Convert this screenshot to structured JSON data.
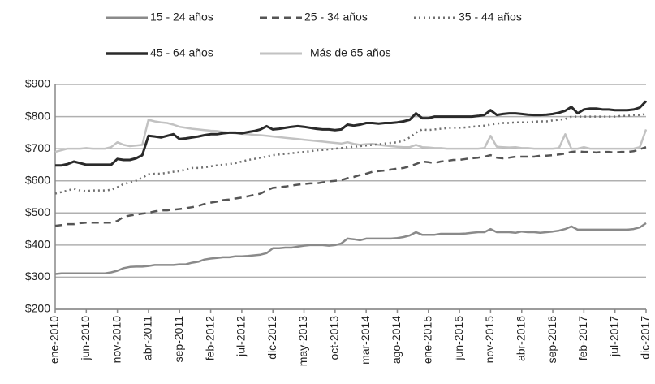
{
  "chart_data": {
    "type": "line",
    "categories": [
      "ene-2010",
      null,
      null,
      null,
      null,
      "jun-2010",
      null,
      null,
      null,
      null,
      "nov-2010",
      null,
      null,
      null,
      null,
      "abr-2011",
      null,
      null,
      null,
      null,
      "sep-2011",
      null,
      null,
      null,
      null,
      "feb-2012",
      null,
      null,
      null,
      null,
      "jul-2012",
      null,
      null,
      null,
      null,
      "dic-2012",
      null,
      null,
      null,
      null,
      "may-2013",
      null,
      null,
      null,
      null,
      "oct-2013",
      null,
      null,
      null,
      null,
      "mar-2014",
      null,
      null,
      null,
      null,
      "ago-2014",
      null,
      null,
      null,
      null,
      "ene-2015",
      null,
      null,
      null,
      null,
      "jun-2015",
      null,
      null,
      null,
      null,
      "nov-2015",
      null,
      null,
      null,
      null,
      "abr-2016",
      null,
      null,
      null,
      null,
      "sep-2016",
      null,
      null,
      null,
      null,
      "feb-2017",
      null,
      null,
      null,
      null,
      "jul-2017",
      null,
      null,
      null,
      null,
      "dic-2017"
    ],
    "series": [
      {
        "name": "15 - 24 años",
        "color": "#8a8a8a",
        "dash": "solid",
        "values": [
          310,
          312,
          312,
          312,
          312,
          312,
          312,
          312,
          312,
          315,
          320,
          328,
          332,
          333,
          333,
          335,
          338,
          338,
          338,
          338,
          340,
          340,
          345,
          348,
          355,
          358,
          360,
          362,
          362,
          365,
          365,
          366,
          368,
          370,
          375,
          390,
          390,
          392,
          392,
          395,
          398,
          400,
          400,
          400,
          398,
          400,
          405,
          420,
          418,
          415,
          420,
          420,
          420,
          420,
          420,
          422,
          425,
          430,
          440,
          432,
          432,
          432,
          435,
          435,
          435,
          435,
          436,
          438,
          440,
          440,
          450,
          440,
          440,
          440,
          438,
          442,
          440,
          440,
          438,
          440,
          442,
          445,
          450,
          458,
          448,
          448,
          448,
          448,
          448,
          448,
          448,
          448,
          448,
          450,
          455,
          468
        ]
      },
      {
        "name": "25 - 34 años",
        "color": "#555555",
        "dash": "dashed",
        "values": [
          460,
          462,
          465,
          465,
          468,
          470,
          470,
          470,
          470,
          470,
          475,
          488,
          492,
          495,
          498,
          500,
          505,
          508,
          508,
          510,
          512,
          515,
          518,
          522,
          528,
          532,
          535,
          540,
          542,
          545,
          548,
          552,
          556,
          560,
          570,
          578,
          580,
          582,
          585,
          588,
          590,
          592,
          592,
          595,
          598,
          600,
          602,
          608,
          612,
          618,
          622,
          628,
          630,
          632,
          635,
          638,
          640,
          645,
          652,
          660,
          658,
          655,
          660,
          662,
          665,
          665,
          668,
          670,
          672,
          675,
          680,
          672,
          670,
          672,
          675,
          675,
          675,
          675,
          678,
          678,
          680,
          682,
          685,
          690,
          692,
          690,
          690,
          688,
          690,
          690,
          688,
          690,
          690,
          692,
          698,
          705
        ]
      },
      {
        "name": "35 - 44 años",
        "color": "#707070",
        "dash": "dotted",
        "values": [
          560,
          565,
          570,
          575,
          570,
          568,
          570,
          570,
          570,
          572,
          580,
          590,
          595,
          600,
          610,
          620,
          622,
          622,
          625,
          628,
          630,
          635,
          640,
          640,
          642,
          645,
          648,
          650,
          652,
          655,
          660,
          665,
          668,
          672,
          675,
          680,
          682,
          684,
          686,
          688,
          690,
          692,
          695,
          696,
          698,
          700,
          702,
          705,
          706,
          708,
          710,
          712,
          714,
          716,
          718,
          720,
          725,
          735,
          750,
          760,
          758,
          760,
          762,
          764,
          765,
          765,
          766,
          768,
          770,
          772,
          775,
          778,
          780,
          780,
          782,
          782,
          782,
          784,
          785,
          785,
          788,
          790,
          792,
          800,
          800,
          800,
          800,
          800,
          800,
          800,
          800,
          802,
          802,
          805,
          805,
          808
        ]
      },
      {
        "name": "45 - 64 años",
        "color": "#2a2a2a",
        "dash": "solid",
        "values": [
          648,
          648,
          652,
          660,
          655,
          650,
          650,
          650,
          650,
          650,
          668,
          665,
          665,
          670,
          680,
          740,
          738,
          735,
          740,
          745,
          730,
          732,
          735,
          738,
          742,
          745,
          745,
          748,
          750,
          750,
          748,
          752,
          755,
          760,
          770,
          760,
          762,
          765,
          768,
          770,
          768,
          765,
          762,
          760,
          760,
          758,
          760,
          775,
          772,
          775,
          780,
          780,
          778,
          780,
          780,
          782,
          785,
          790,
          810,
          795,
          795,
          800,
          800,
          800,
          800,
          800,
          800,
          800,
          802,
          805,
          820,
          805,
          808,
          810,
          810,
          808,
          806,
          805,
          805,
          806,
          808,
          812,
          818,
          830,
          810,
          822,
          825,
          825,
          822,
          822,
          820,
          820,
          820,
          822,
          828,
          848
        ]
      },
      {
        "name": "Más de 65 años",
        "color": "#c2c2c2",
        "dash": "solid",
        "values": [
          690,
          695,
          700,
          700,
          700,
          702,
          700,
          700,
          700,
          705,
          720,
          712,
          708,
          710,
          712,
          790,
          785,
          782,
          780,
          775,
          768,
          765,
          762,
          760,
          758,
          756,
          755,
          752,
          750,
          748,
          746,
          745,
          743,
          742,
          740,
          738,
          736,
          734,
          732,
          730,
          728,
          726,
          724,
          722,
          720,
          718,
          716,
          720,
          715,
          712,
          714,
          715,
          712,
          710,
          708,
          706,
          705,
          705,
          712,
          705,
          704,
          702,
          702,
          700,
          700,
          700,
          700,
          700,
          700,
          702,
          740,
          706,
          705,
          704,
          705,
          702,
          702,
          700,
          700,
          700,
          700,
          702,
          745,
          700,
          700,
          705,
          700,
          700,
          700,
          700,
          700,
          700,
          700,
          700,
          705,
          760
        ]
      }
    ],
    "ylim": [
      200,
      900
    ],
    "yticks": [
      {
        "value": 200,
        "label": "$200"
      },
      {
        "value": 300,
        "label": "$300"
      },
      {
        "value": 400,
        "label": "$400"
      },
      {
        "value": 500,
        "label": "$500"
      },
      {
        "value": 600,
        "label": "$600"
      },
      {
        "value": 700,
        "label": "$700"
      },
      {
        "value": 800,
        "label": "$800"
      },
      {
        "value": 900,
        "label": "$900"
      }
    ],
    "grid": true
  }
}
